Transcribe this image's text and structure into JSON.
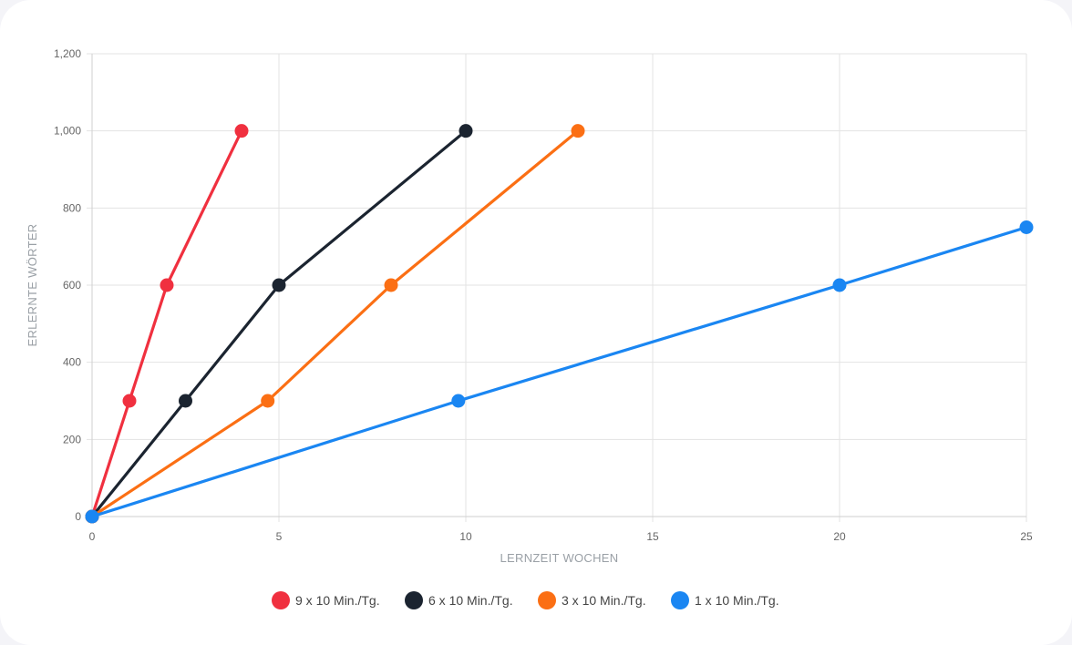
{
  "chart_data": {
    "type": "line",
    "xlabel": "LERNZEIT WOCHEN",
    "ylabel": "ERLERNTE WÖRTER",
    "xlim": [
      0,
      25
    ],
    "ylim": [
      0,
      1200
    ],
    "x_ticks": [
      "0",
      "5",
      "10",
      "15",
      "20",
      "25"
    ],
    "y_ticks": [
      "0",
      "200",
      "400",
      "600",
      "800",
      "1,000",
      "1,200"
    ],
    "x_tick_values": [
      0,
      5,
      10,
      15,
      20,
      25
    ],
    "y_tick_values": [
      0,
      200,
      400,
      600,
      800,
      1000,
      1200
    ],
    "grid": true,
    "legend_position": "bottom",
    "series": [
      {
        "name": "9 x 10 Min./Tg.",
        "color": "#f0303f",
        "points": [
          [
            0,
            0
          ],
          [
            1,
            300
          ],
          [
            2,
            600
          ],
          [
            4,
            1000
          ]
        ]
      },
      {
        "name": "6 x 10 Min./Tg.",
        "color": "#1b2430",
        "points": [
          [
            0,
            0
          ],
          [
            2.5,
            300
          ],
          [
            5,
            600
          ],
          [
            10,
            1000
          ]
        ]
      },
      {
        "name": "3 x 10 Min./Tg.",
        "color": "#fb6f14",
        "points": [
          [
            0,
            0
          ],
          [
            4.7,
            300
          ],
          [
            8,
            600
          ],
          [
            13,
            1000
          ]
        ]
      },
      {
        "name": "1 x 10 Min./Tg.",
        "color": "#1a86f2",
        "points": [
          [
            0,
            0
          ],
          [
            9.8,
            300
          ],
          [
            20,
            600
          ],
          [
            25,
            750
          ]
        ]
      }
    ]
  }
}
